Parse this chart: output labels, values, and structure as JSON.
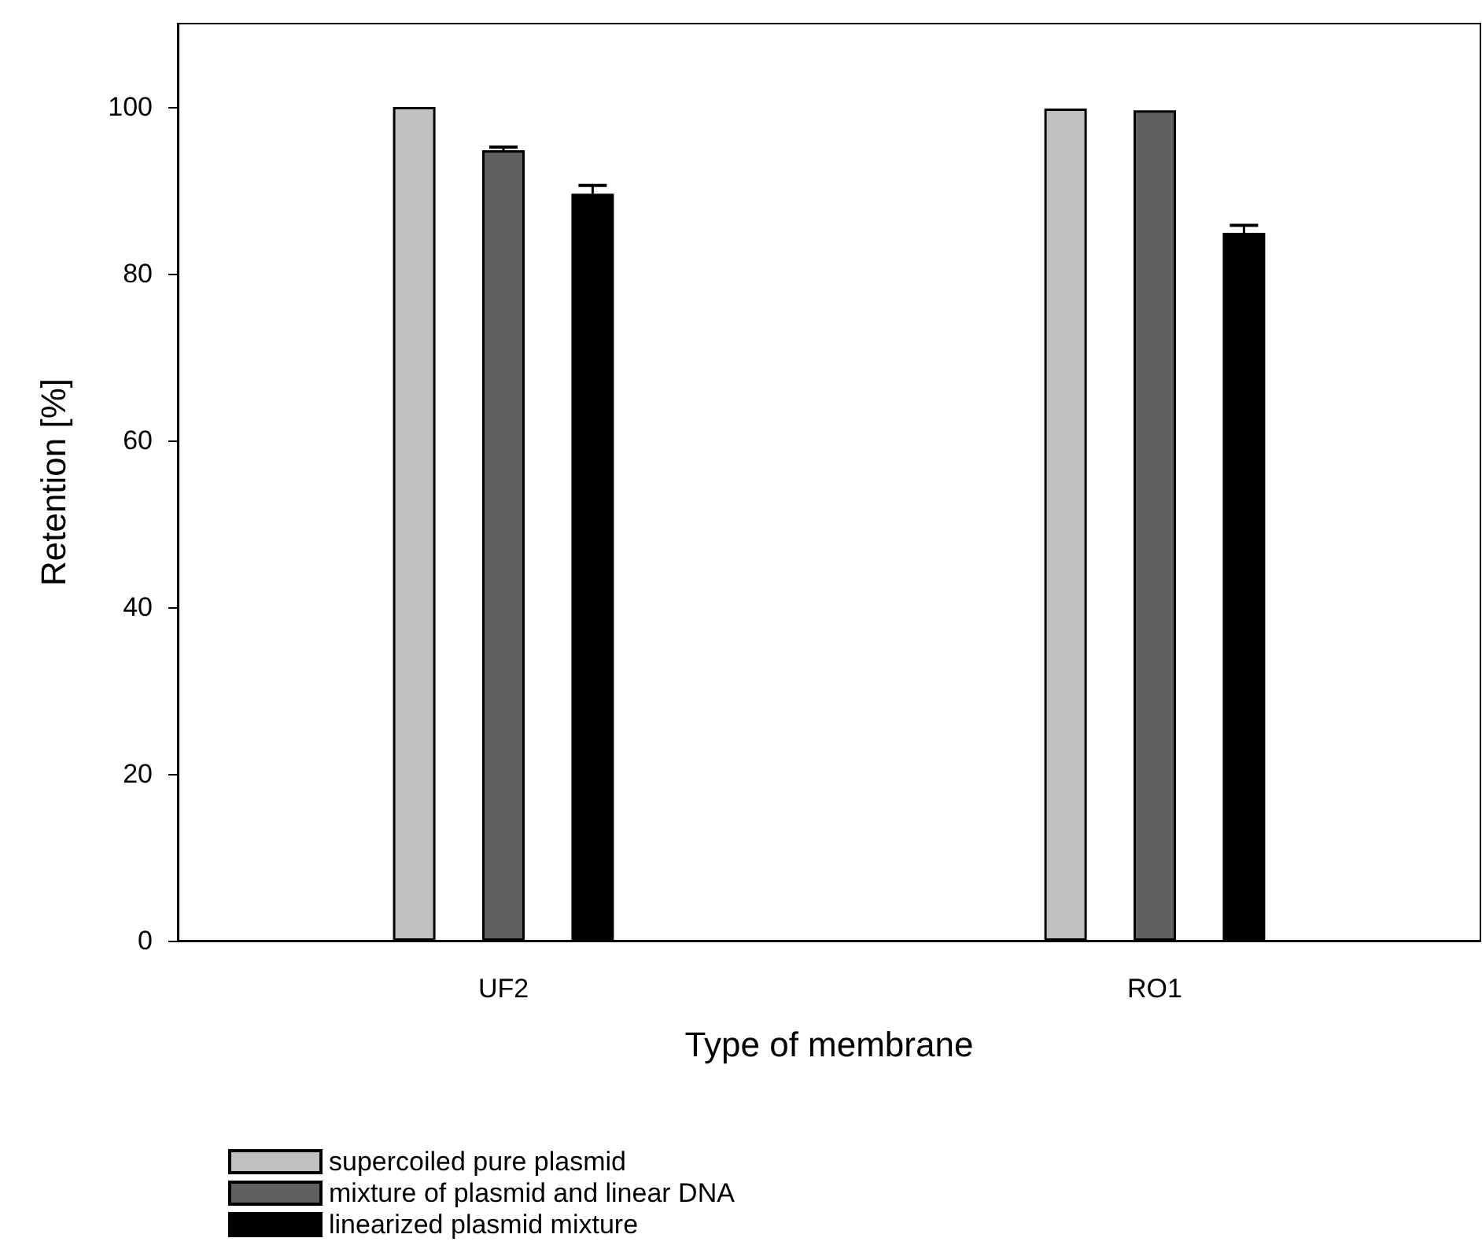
{
  "chart_data": {
    "type": "bar",
    "xlabel": "Type of membrane",
    "ylabel": "Retention [%]",
    "categories": [
      "UF2",
      "RO1"
    ],
    "series": [
      {
        "name": "supercoiled pure plasmid",
        "color": "#c0c0c0",
        "values": [
          100,
          99.8
        ]
      },
      {
        "name": "mixture of plasmid and linear DNA",
        "color": "#606060",
        "values": [
          94.8,
          99.6
        ],
        "errors": [
          0.4,
          null
        ]
      },
      {
        "name": "linearized plasmid mixture",
        "color": "#000000",
        "values": [
          89.6,
          84.9
        ],
        "errors": [
          1.0,
          0.9
        ]
      }
    ],
    "ylim": [
      0,
      110
    ],
    "yticks": [
      0,
      20,
      40,
      60,
      80,
      100
    ],
    "grid": false,
    "legend": "bottom left"
  }
}
